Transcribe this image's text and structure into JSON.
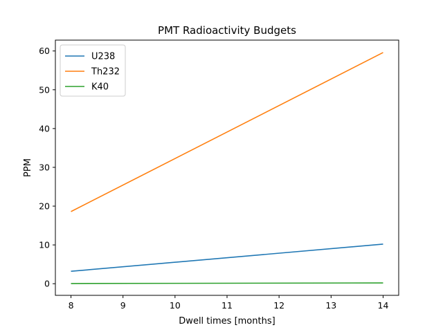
{
  "chart_data": {
    "type": "line",
    "title": "PMT Radioactivity Budgets",
    "xlabel": "Dwell times [months]",
    "ylabel": "PPM",
    "xlim": [
      7.7,
      14.3
    ],
    "ylim": [
      -3,
      62.8
    ],
    "xticks": [
      8,
      9,
      10,
      11,
      12,
      13,
      14
    ],
    "yticks": [
      0,
      10,
      20,
      30,
      40,
      50,
      60
    ],
    "grid": false,
    "legend": "top-left",
    "x": [
      8,
      14
    ],
    "series": [
      {
        "name": "U238",
        "color": "#1f77b4",
        "values": [
          3.2,
          10.2
        ]
      },
      {
        "name": "Th232",
        "color": "#ff7f0e",
        "values": [
          18.6,
          59.6
        ]
      },
      {
        "name": "K40",
        "color": "#2ca02c",
        "values": [
          0.05,
          0.2
        ]
      }
    ]
  }
}
